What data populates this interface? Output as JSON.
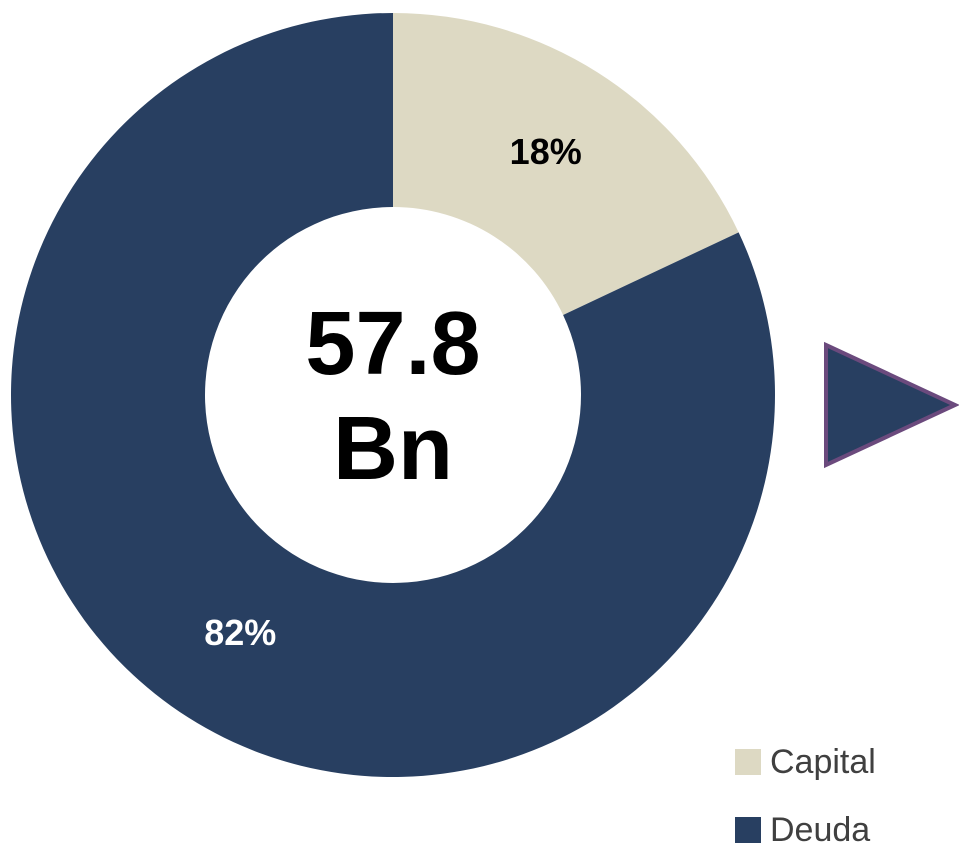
{
  "chart_data": {
    "type": "donut",
    "categories": [
      "Capital",
      "Deuda"
    ],
    "values": [
      18,
      82
    ],
    "value_labels": [
      "18%",
      "82%"
    ],
    "colors": [
      "#ddd9c3",
      "#283f61"
    ],
    "center_label": [
      "57.8",
      "Bn"
    ],
    "legend": "bottom-right"
  }
}
